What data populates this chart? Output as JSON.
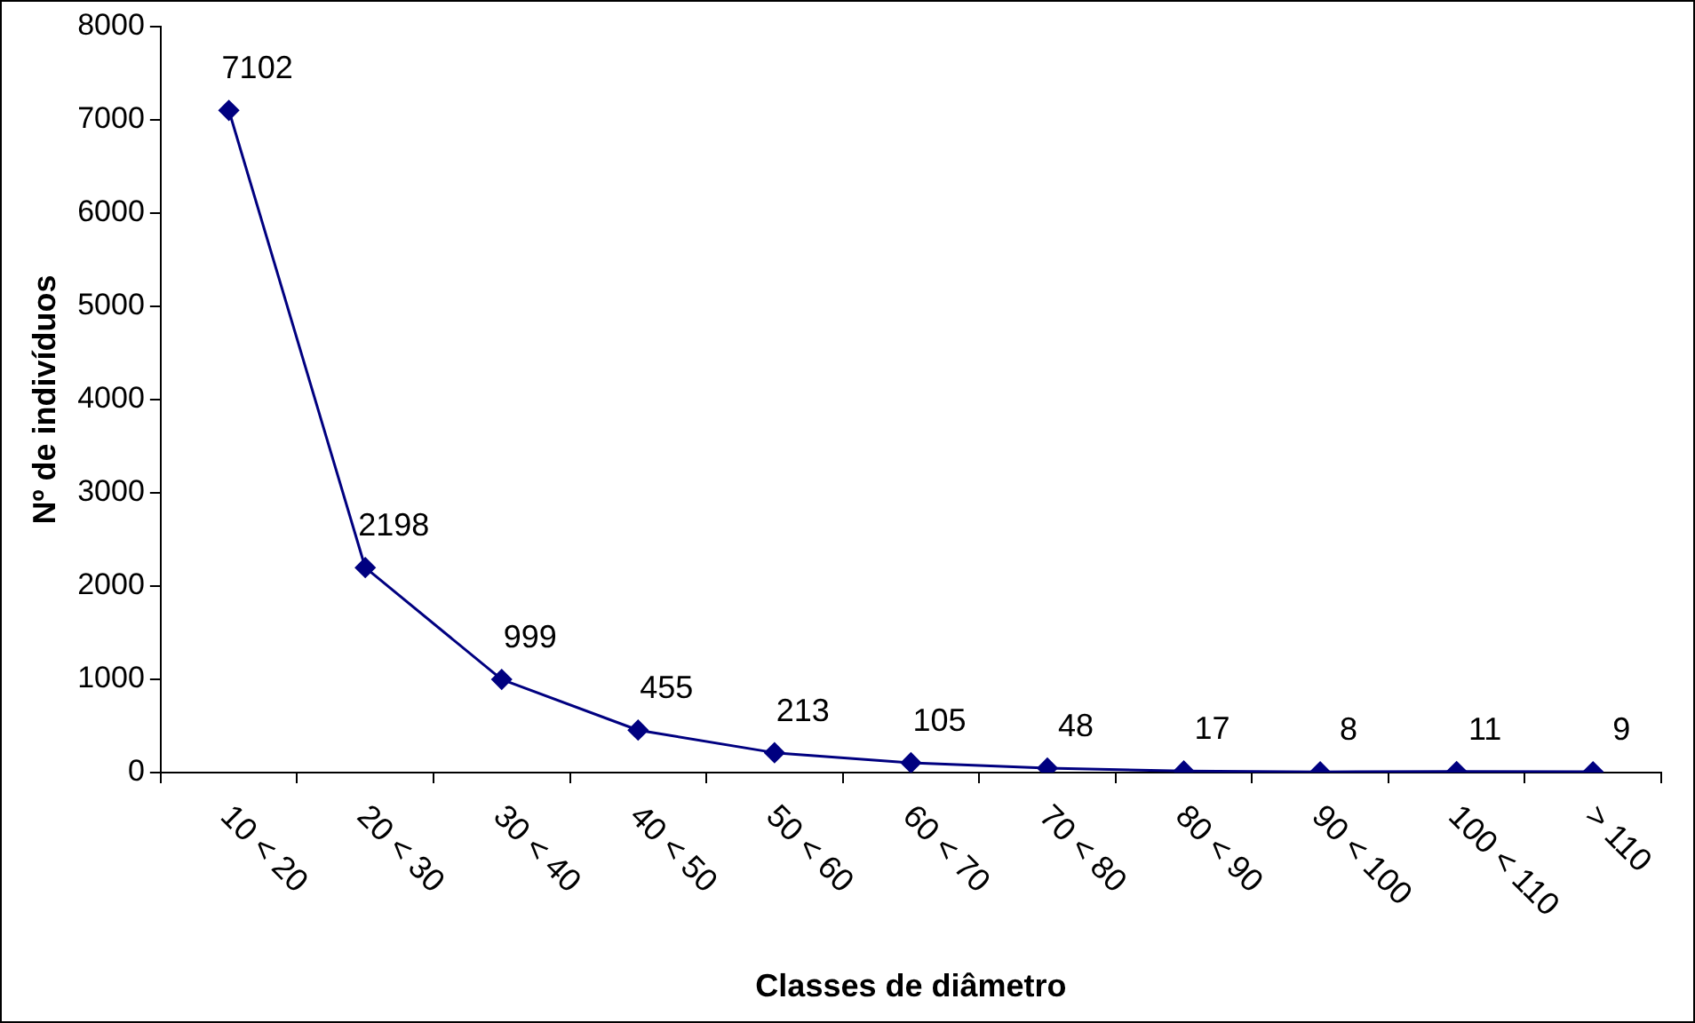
{
  "chart_data": {
    "type": "line",
    "xlabel": "Classes de diâmetro",
    "ylabel": "Nº de indivíduos",
    "categories": [
      "10 < 20",
      "20 < 30",
      "30 < 40",
      "40 < 50",
      "50 < 60",
      "60 < 70",
      "70 < 80",
      "80 < 90",
      "90 < 100",
      "100 < 110",
      "> 110"
    ],
    "series": [
      {
        "color": "#000080",
        "values": [
          7102,
          2198,
          999,
          455,
          213,
          105,
          48,
          17,
          8,
          11,
          9
        ]
      }
    ],
    "ylim": [
      0,
      8000
    ],
    "yticks": [
      0,
      1000,
      2000,
      3000,
      4000,
      5000,
      6000,
      7000,
      8000
    ],
    "grid": false,
    "legend": false,
    "marker": "diamond",
    "line_style": "solid",
    "data_labels": true
  }
}
